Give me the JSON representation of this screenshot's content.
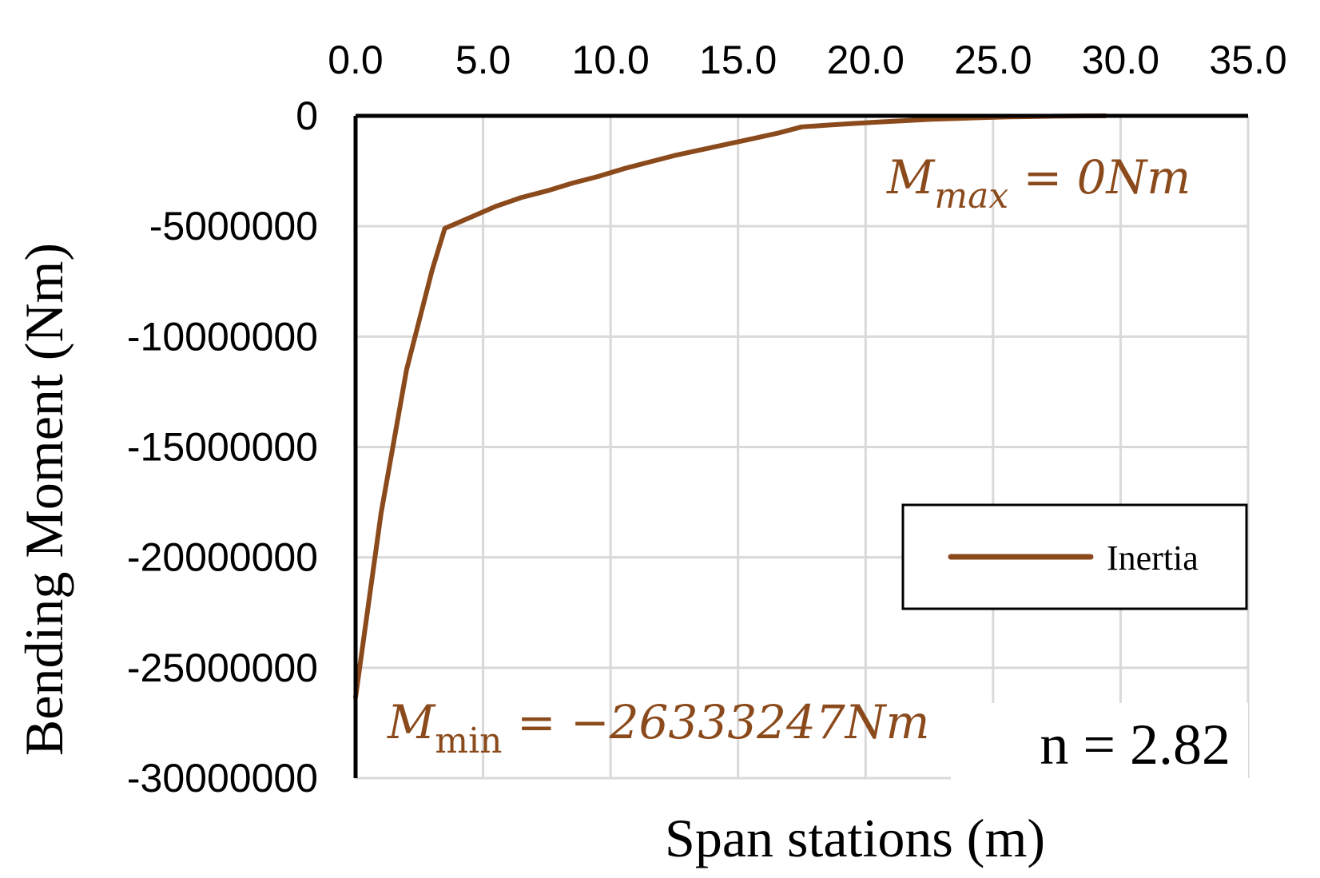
{
  "chart_data": {
    "type": "line",
    "xlabel": "Span stations (m)",
    "ylabel": "Bending Moment (Nm)",
    "xlim": [
      0,
      35
    ],
    "ylim": [
      -30000000,
      0
    ],
    "x_ticks": [
      "0.0",
      "5.0",
      "10.0",
      "15.0",
      "20.0",
      "25.0",
      "30.0",
      "35.0"
    ],
    "y_ticks": [
      "0",
      "-5000000",
      "-10000000",
      "-15000000",
      "-20000000",
      "-25000000",
      "-30000000"
    ],
    "x_axis_position": "top",
    "grid": true,
    "legend_position": "right-middle",
    "series": [
      {
        "name": "Inertia",
        "color": "#8B4A1C",
        "x": [
          0.0,
          1.0,
          2.0,
          3.0,
          3.5,
          4.5,
          5.5,
          6.5,
          7.5,
          8.5,
          9.5,
          10.5,
          11.5,
          12.5,
          13.5,
          14.5,
          15.5,
          16.5,
          17.5,
          18.5,
          19.5,
          20.5,
          21.5,
          22.5,
          23.5,
          24.5,
          25.5,
          26.5,
          27.5,
          28.5,
          29.4
        ],
        "y": [
          -26333247,
          -18000000,
          -11500000,
          -7000000,
          -5100000,
          -4600000,
          -4100000,
          -3700000,
          -3400000,
          -3050000,
          -2750000,
          -2400000,
          -2100000,
          -1800000,
          -1550000,
          -1300000,
          -1050000,
          -800000,
          -500000,
          -420000,
          -350000,
          -280000,
          -220000,
          -160000,
          -120000,
          -80000,
          -50000,
          -30000,
          -15000,
          -5000,
          0
        ]
      }
    ],
    "annotations": {
      "mmax": {
        "prefix": "M",
        "subscript": "max",
        "text": " = 0Nm"
      },
      "mmin": {
        "prefix": "M",
        "subscript": "min",
        "text": " = −26333247Nm"
      },
      "n_value": "n = 2.82"
    }
  }
}
